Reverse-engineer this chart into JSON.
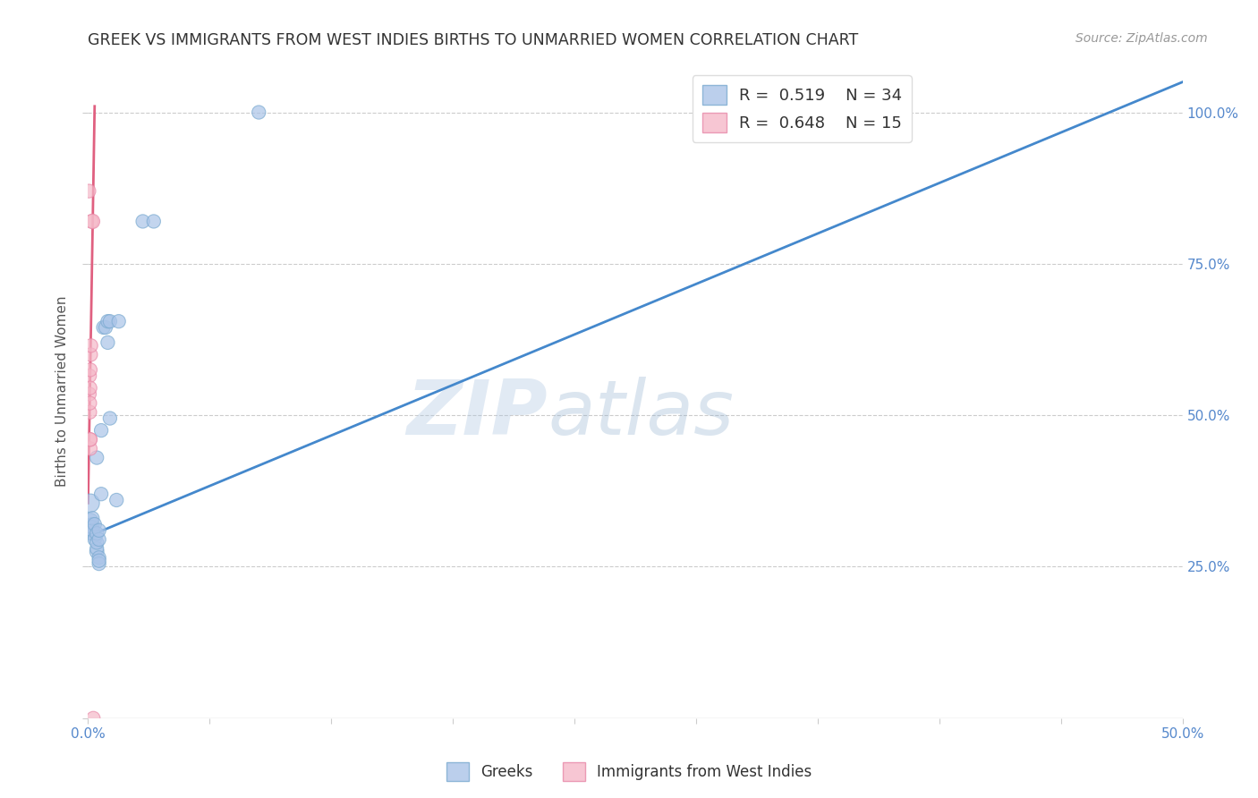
{
  "title": "GREEK VS IMMIGRANTS FROM WEST INDIES BIRTHS TO UNMARRIED WOMEN CORRELATION CHART",
  "source": "Source: ZipAtlas.com",
  "ylabel": "Births to Unmarried Women",
  "xlim": [
    0.0,
    0.5
  ],
  "ylim": [
    0.0,
    1.08
  ],
  "blue_color": "#aac4e8",
  "blue_edge_color": "#7aaad0",
  "pink_color": "#f5b8c8",
  "pink_edge_color": "#e888a8",
  "blue_line_color": "#4488cc",
  "pink_line_color": "#e06080",
  "legend_r_blue": "R =  0.519",
  "legend_n_blue": "N = 34",
  "legend_r_pink": "R =  0.648",
  "legend_n_pink": "N = 15",
  "watermark_zip": "ZIP",
  "watermark_atlas": "atlas",
  "grid_color": "#cccccc",
  "bg_color": "#ffffff",
  "title_color": "#333333",
  "tick_color": "#5588cc",
  "greek_x": [
    0.001,
    0.001,
    0.001,
    0.001,
    0.002,
    0.002,
    0.002,
    0.002,
    0.002,
    0.003,
    0.003,
    0.004,
    0.004,
    0.004,
    0.004,
    0.004,
    0.005,
    0.005,
    0.005,
    0.005,
    0.005,
    0.006,
    0.006,
    0.007,
    0.008,
    0.009,
    0.009,
    0.01,
    0.01,
    0.013,
    0.014,
    0.025,
    0.03,
    0.078
  ],
  "greek_y": [
    0.355,
    0.325,
    0.315,
    0.305,
    0.305,
    0.32,
    0.315,
    0.31,
    0.33,
    0.295,
    0.32,
    0.275,
    0.28,
    0.29,
    0.305,
    0.43,
    0.295,
    0.31,
    0.265,
    0.255,
    0.26,
    0.37,
    0.475,
    0.645,
    0.645,
    0.62,
    0.655,
    0.495,
    0.655,
    0.36,
    0.655,
    0.82,
    0.82,
    1.0
  ],
  "greek_sizes": [
    220,
    170,
    130,
    120,
    120,
    120,
    120,
    120,
    120,
    120,
    120,
    130,
    120,
    120,
    120,
    120,
    120,
    120,
    120,
    120,
    120,
    120,
    120,
    120,
    120,
    120,
    120,
    120,
    120,
    120,
    120,
    120,
    120,
    120
  ],
  "pink_x": [
    0.0004,
    0.0006,
    0.0007,
    0.0008,
    0.0008,
    0.0009,
    0.001,
    0.001,
    0.001,
    0.001,
    0.0012,
    0.0013,
    0.0017,
    0.002,
    0.0024
  ],
  "pink_y": [
    0.87,
    0.535,
    0.565,
    0.505,
    0.52,
    0.545,
    0.445,
    0.46,
    0.46,
    0.575,
    0.6,
    0.615,
    0.82,
    0.82,
    0.0
  ],
  "pink_sizes": [
    120,
    120,
    120,
    120,
    120,
    120,
    120,
    120,
    120,
    120,
    120,
    120,
    120,
    140,
    120
  ],
  "blue_line_x": [
    0.0,
    0.5
  ],
  "blue_line_y": [
    0.3,
    1.05
  ],
  "pink_line_x": [
    0.0,
    0.003
  ],
  "pink_line_y": [
    0.355,
    1.01
  ]
}
